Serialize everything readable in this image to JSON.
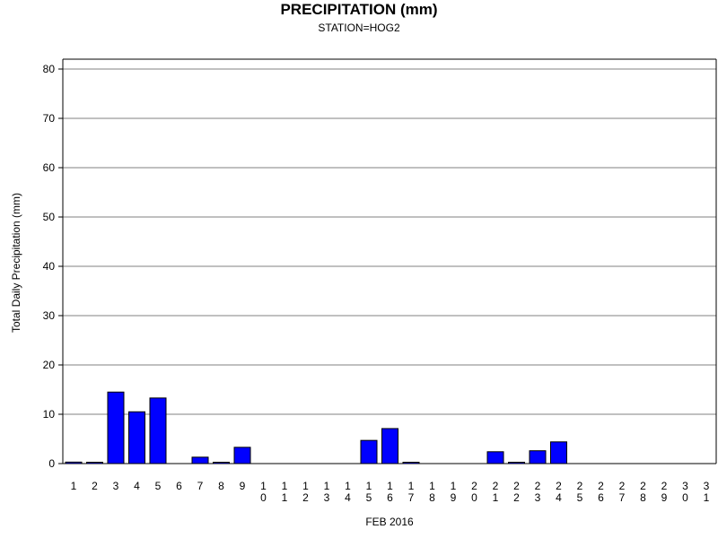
{
  "chart_data": {
    "type": "bar",
    "title": "PRECIPITATION (mm)",
    "subtitle": "STATION=HOG2",
    "xlabel": "FEB 2016",
    "ylabel": "Total Daily Precipitation (mm)",
    "ylim": [
      0,
      80
    ],
    "yticks": [
      0,
      10,
      20,
      30,
      40,
      50,
      60,
      70,
      80
    ],
    "grid": true,
    "bar_color": "#0000ff",
    "categories": [
      "1",
      "2",
      "3",
      "4",
      "5",
      "6",
      "7",
      "8",
      "9",
      "10",
      "11",
      "12",
      "13",
      "14",
      "15",
      "16",
      "17",
      "18",
      "19",
      "20",
      "21",
      "22",
      "23",
      "24",
      "25",
      "26",
      "27",
      "28",
      "29",
      "30",
      "31"
    ],
    "values": [
      0.3,
      0.1,
      14.5,
      10.5,
      13.3,
      0,
      1.3,
      0.1,
      3.3,
      0,
      0,
      0,
      0,
      0,
      4.7,
      7.1,
      0.1,
      0,
      0,
      0,
      2.4,
      0.1,
      2.6,
      4.4,
      0,
      0,
      0,
      0,
      0,
      0,
      0
    ]
  }
}
